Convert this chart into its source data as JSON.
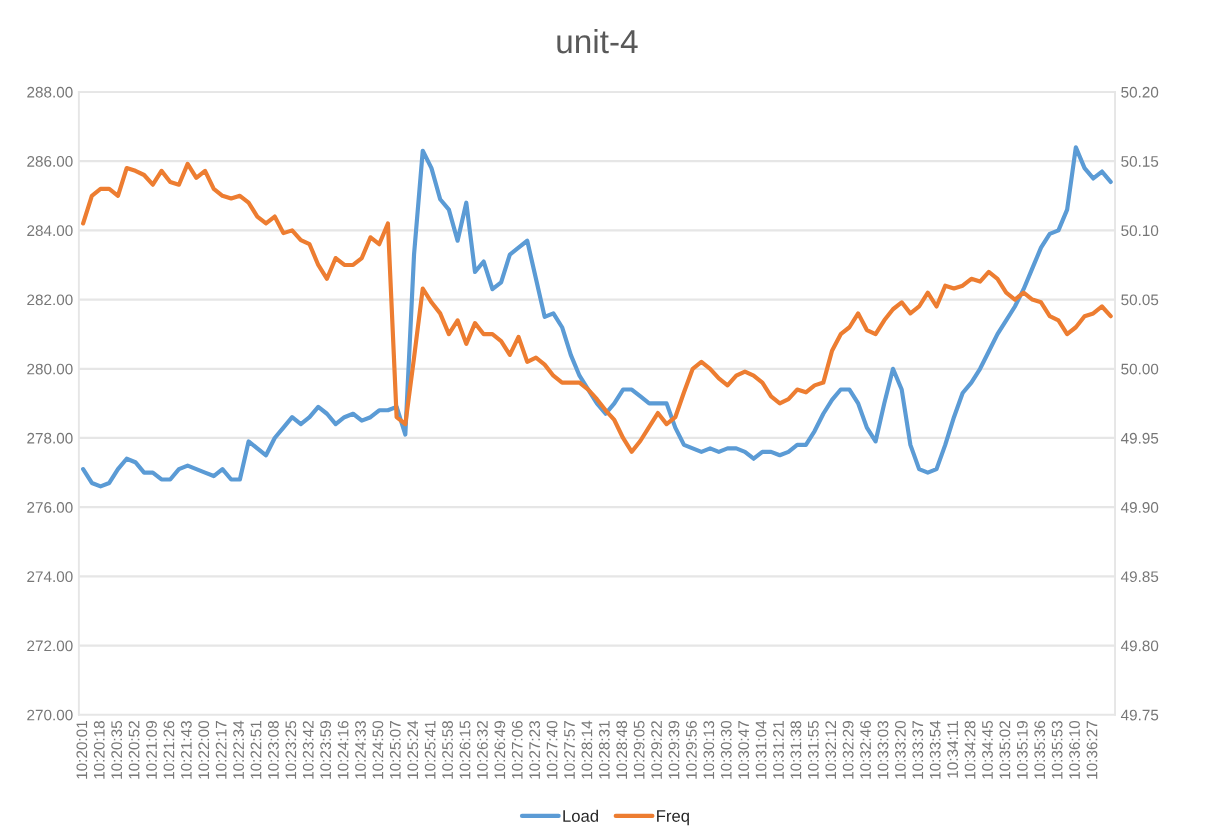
{
  "chart_data": {
    "type": "line",
    "title": "unit-4",
    "categories": [
      "10:20:01",
      null,
      "10:20:18",
      null,
      "10:20:35",
      null,
      "10:20:52",
      null,
      "10:21:09",
      null,
      "10:21:26",
      null,
      "10:21:43",
      null,
      "10:22:00",
      null,
      "10:22:17",
      null,
      "10:22:34",
      null,
      "10:22:51",
      null,
      "10:23:08",
      null,
      "10:23:25",
      null,
      "10:23:42",
      null,
      "10:23:59",
      null,
      "10:24:16",
      null,
      "10:24:33",
      null,
      "10:24:50",
      null,
      "10:25:07",
      null,
      "10:25:24",
      null,
      "10:25:41",
      null,
      "10:25:58",
      null,
      "10:26:15",
      null,
      "10:26:32",
      null,
      "10:26:49",
      null,
      "10:27:06",
      null,
      "10:27:23",
      null,
      "10:27:40",
      null,
      "10:27:57",
      null,
      "10:28:14",
      null,
      "10:28:31",
      null,
      "10:28:48",
      null,
      "10:29:05",
      null,
      "10:29:22",
      null,
      "10:29:39",
      null,
      "10:29:56",
      null,
      "10:30:13",
      null,
      "10:30:30",
      null,
      "10:30:47",
      null,
      "10:31:04",
      null,
      "10:31:21",
      null,
      "10:31:38",
      null,
      "10:31:55",
      null,
      "10:32:12",
      null,
      "10:32:29",
      null,
      "10:32:46",
      null,
      "10:33:03",
      null,
      "10:33:20",
      null,
      "10:33:37",
      null,
      "10:33:54",
      null,
      "10:34:11",
      null,
      "10:34:28",
      null,
      "10:34:45",
      null,
      "10:35:02",
      null,
      "10:35:19",
      null,
      "10:35:36",
      null,
      "10:35:53",
      null,
      "10:36:10",
      null,
      "10:36:27",
      null,
      null
    ],
    "series": [
      {
        "name": "Load",
        "color": "#5b9bd5",
        "values": [
          277.1,
          276.7,
          276.6,
          276.7,
          277.1,
          277.4,
          277.3,
          277.0,
          277.0,
          276.8,
          276.8,
          277.1,
          277.2,
          277.1,
          277.0,
          276.9,
          277.1,
          276.8,
          276.8,
          277.9,
          277.7,
          277.5,
          278.0,
          278.3,
          278.6,
          278.4,
          278.6,
          278.9,
          278.7,
          278.4,
          278.6,
          278.7,
          278.5,
          278.6,
          278.8,
          278.8,
          278.9,
          278.1,
          283.3,
          286.3,
          285.8,
          284.9,
          284.6,
          283.7,
          284.8,
          282.8,
          283.1,
          282.3,
          282.5,
          283.3,
          283.5,
          283.7,
          282.6,
          281.5,
          281.6,
          281.2,
          280.4,
          279.8,
          279.4,
          279.0,
          278.7,
          279.0,
          279.4,
          279.4,
          279.2,
          279.0,
          279.0,
          279.0,
          278.3,
          277.8,
          277.7,
          277.6,
          277.7,
          277.6,
          277.7,
          277.7,
          277.6,
          277.4,
          277.6,
          277.6,
          277.5,
          277.6,
          277.8,
          277.8,
          278.2,
          278.7,
          279.1,
          279.4,
          279.4,
          279.0,
          278.3,
          277.9,
          279.0,
          280.0,
          279.4,
          277.8,
          277.1,
          277.0,
          277.1,
          277.8,
          278.6,
          279.3,
          279.6,
          280.0,
          280.5,
          281.0,
          281.4,
          281.8,
          282.3,
          282.9,
          283.5,
          283.9,
          284.0,
          284.6,
          286.4,
          285.8,
          285.5,
          285.7,
          285.4
        ]
      },
      {
        "name": "Freq",
        "color": "#ed7d31",
        "axis": "y2",
        "values": [
          50.105,
          50.125,
          50.13,
          50.13,
          50.125,
          50.145,
          50.143,
          50.14,
          50.133,
          50.143,
          50.135,
          50.133,
          50.148,
          50.138,
          50.143,
          50.13,
          50.125,
          50.123,
          50.125,
          50.12,
          50.11,
          50.105,
          50.11,
          50.098,
          50.1,
          50.093,
          50.09,
          50.075,
          50.065,
          50.08,
          50.075,
          50.075,
          50.08,
          50.095,
          50.09,
          50.105,
          49.965,
          49.96,
          50.008,
          50.058,
          50.048,
          50.04,
          50.025,
          50.035,
          50.018,
          50.033,
          50.025,
          50.025,
          50.02,
          50.01,
          50.023,
          50.005,
          50.008,
          50.003,
          49.995,
          49.99,
          49.99,
          49.99,
          49.985,
          49.978,
          49.97,
          49.963,
          49.95,
          49.94,
          49.948,
          49.958,
          49.968,
          49.96,
          49.965,
          49.983,
          50.0,
          50.005,
          50.0,
          49.993,
          49.988,
          49.995,
          49.998,
          49.995,
          49.99,
          49.98,
          49.975,
          49.978,
          49.985,
          49.983,
          49.988,
          49.99,
          50.013,
          50.025,
          50.03,
          50.04,
          50.028,
          50.025,
          50.035,
          50.043,
          50.048,
          50.04,
          50.045,
          50.055,
          50.045,
          50.06,
          50.058,
          50.06,
          50.065,
          50.063,
          50.07,
          50.065,
          50.055,
          50.05,
          50.055,
          50.05,
          50.048,
          50.038,
          50.035,
          50.025,
          50.03,
          50.038,
          50.04,
          50.045,
          50.038
        ]
      }
    ],
    "ylim": [
      270,
      288
    ],
    "yticks": [
      {
        "value": 270,
        "label": "270.00"
      },
      {
        "value": 272,
        "label": "272.00"
      },
      {
        "value": 274,
        "label": "274.00"
      },
      {
        "value": 276,
        "label": "276.00"
      },
      {
        "value": 278,
        "label": "278.00"
      },
      {
        "value": 280,
        "label": "280.00"
      },
      {
        "value": 282,
        "label": "282.00"
      },
      {
        "value": 284,
        "label": "284.00"
      },
      {
        "value": 286,
        "label": "286.00"
      },
      {
        "value": 288,
        "label": "288.00"
      }
    ],
    "y2lim": [
      49.75,
      50.2
    ],
    "y2ticks": [
      {
        "value": 49.75,
        "label": "49.75"
      },
      {
        "value": 49.8,
        "label": "49.80"
      },
      {
        "value": 49.85,
        "label": "49.85"
      },
      {
        "value": 49.9,
        "label": "49.90"
      },
      {
        "value": 49.95,
        "label": "49.95"
      },
      {
        "value": 50.0,
        "label": "50.00"
      },
      {
        "value": 50.05,
        "label": "50.05"
      },
      {
        "value": 50.1,
        "label": "50.10"
      },
      {
        "value": 50.15,
        "label": "50.15"
      },
      {
        "value": 50.2,
        "label": "50.20"
      }
    ],
    "grid": "y",
    "legend": "bottom",
    "marker": "none",
    "line_style": "solid"
  }
}
